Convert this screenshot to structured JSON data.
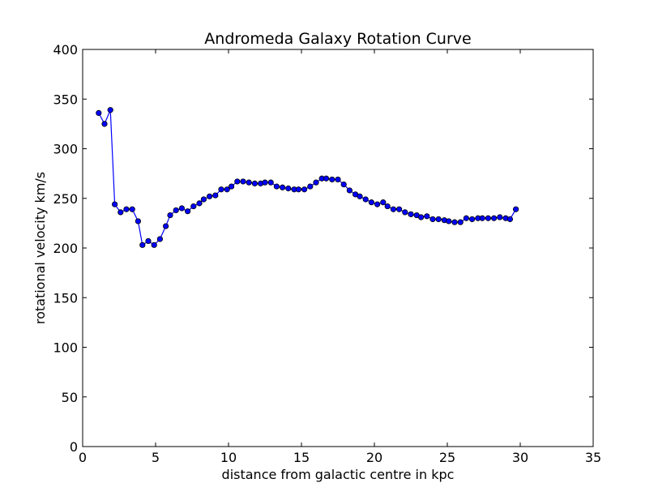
{
  "chart_data": {
    "type": "line",
    "title": "Andromeda Galaxy Rotation Curve",
    "xlabel": "distance from galactic centre in kpc",
    "ylabel": "rotational velocity km/s",
    "xlim": [
      0,
      35
    ],
    "ylim": [
      0,
      400
    ],
    "xticks": [
      0,
      5,
      10,
      15,
      20,
      25,
      30,
      35
    ],
    "yticks": [
      0,
      50,
      100,
      150,
      200,
      250,
      300,
      350,
      400
    ],
    "grid": false,
    "legend": "none",
    "marker": "circle",
    "line_color": "#0000ff",
    "marker_fill": "#0000ff",
    "marker_edge": "#000000",
    "series": [
      {
        "x": [
          1.1,
          1.5,
          1.9,
          2.2,
          2.6,
          3.0,
          3.4,
          3.8,
          4.1,
          4.5,
          4.9,
          5.3,
          5.7,
          6.0,
          6.4,
          6.8,
          7.2,
          7.6,
          8.0,
          8.3,
          8.7,
          9.1,
          9.5,
          9.9,
          10.2,
          10.6,
          11.0,
          11.4,
          11.8,
          12.2,
          12.5,
          12.9,
          13.3,
          13.7,
          14.1,
          14.5,
          14.8,
          15.2,
          15.6,
          16.0,
          16.4,
          16.7,
          17.1,
          17.5,
          17.9,
          18.3,
          18.7,
          19.0,
          19.4,
          19.8,
          20.2,
          20.6,
          20.9,
          21.3,
          21.7,
          22.1,
          22.5,
          22.9,
          23.2,
          23.6,
          24.0,
          24.4,
          24.8,
          25.1,
          25.5,
          25.9,
          26.3,
          26.7,
          27.1,
          27.4,
          27.8,
          28.2,
          28.6,
          29.0,
          29.3,
          29.7
        ],
        "y": [
          336,
          325,
          339,
          244,
          236,
          239,
          239,
          227,
          203,
          207,
          203,
          209,
          222,
          233,
          238,
          240,
          237,
          242,
          245,
          249,
          252,
          253,
          259,
          259,
          262,
          267,
          267,
          266,
          265,
          265,
          266,
          266,
          262,
          261,
          260,
          259,
          259,
          259,
          262,
          266,
          270,
          270,
          269,
          269,
          264,
          258,
          254,
          252,
          249,
          246,
          244,
          246,
          242,
          239,
          239,
          236,
          234,
          233,
          231,
          232,
          229,
          229,
          228,
          227,
          226,
          226,
          230,
          229,
          230,
          230,
          230,
          230,
          231,
          230,
          229,
          239
        ]
      }
    ]
  }
}
